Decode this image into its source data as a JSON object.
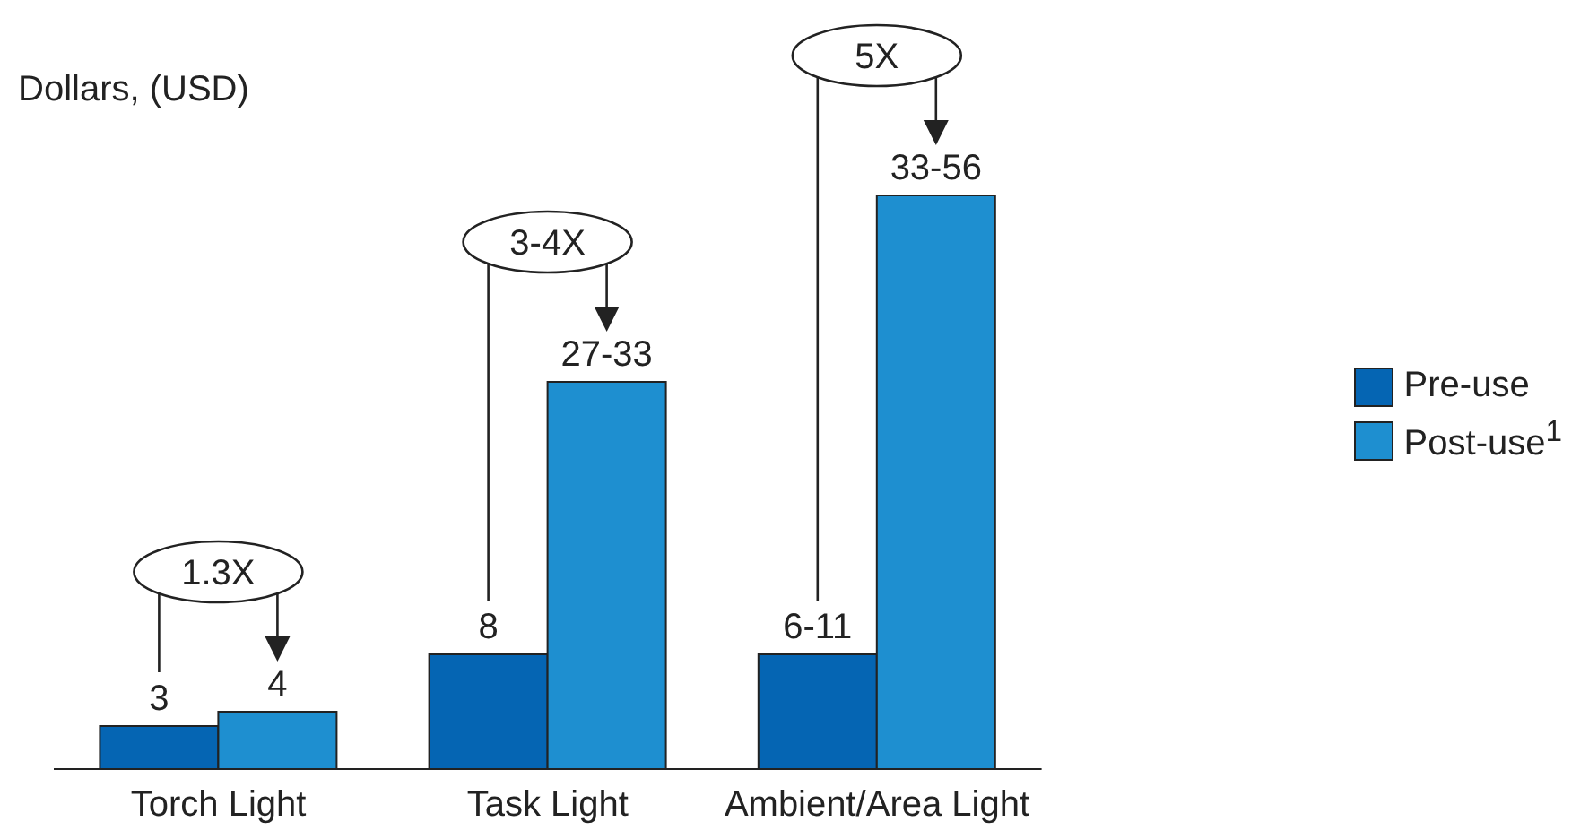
{
  "chart_data": {
    "type": "bar",
    "ylabel": "Dollars, (USD)",
    "categories": [
      "Torch Light",
      "Task Light",
      "Ambient/Area Light"
    ],
    "series": [
      {
        "name": "Pre-use",
        "color": "#0565b3",
        "values": [
          3,
          8,
          8
        ],
        "value_labels": [
          "3",
          "8",
          "6-11"
        ]
      },
      {
        "name": "Post-use$^{1}$",
        "color": "#1e8fd0",
        "values": [
          4,
          27,
          40
        ],
        "value_labels": [
          "4",
          "27-33",
          "33-56"
        ]
      }
    ],
    "ylim": [
      0,
      50
    ],
    "annotations": [
      "1.3X",
      "3-4X",
      "5X"
    ],
    "legend": "right"
  }
}
